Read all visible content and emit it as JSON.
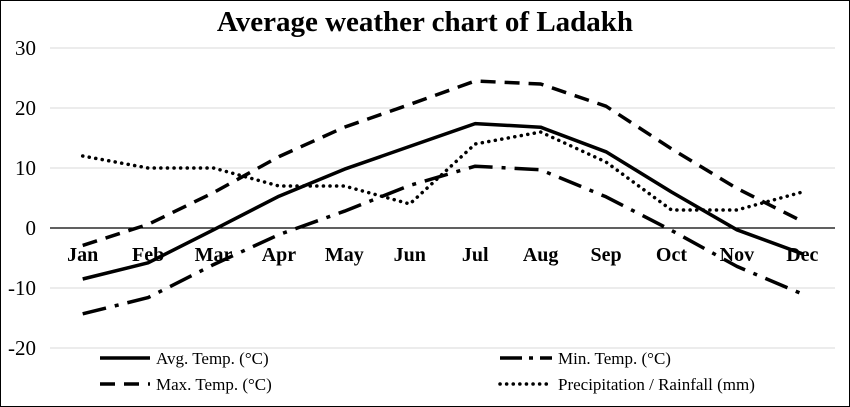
{
  "chart_data": {
    "type": "line",
    "title": "Average weather chart of Ladakh",
    "categories": [
      "Jan",
      "Feb",
      "Mar",
      "Apr",
      "May",
      "Jun",
      "Jul",
      "Aug",
      "Sep",
      "Oct",
      "Nov",
      "Dec"
    ],
    "ylim": [
      -20,
      30
    ],
    "yticks": [
      30,
      20,
      10,
      0,
      -10,
      -20
    ],
    "grid": true,
    "legend_position": "bottom",
    "series": [
      {
        "name": "Avg. Temp. (°C)",
        "style": "solid",
        "color": "#000000",
        "values": [
          -8.5,
          -5.8,
          -0.3,
          5.3,
          9.8,
          13.6,
          17.4,
          16.8,
          12.7,
          6.0,
          -0.3,
          -4.3
        ]
      },
      {
        "name": "Min. Temp. (°C)",
        "style": "dashdot",
        "color": "#000000",
        "values": [
          -14.3,
          -11.6,
          -6.1,
          -1.1,
          2.8,
          7.1,
          10.3,
          9.7,
          5.2,
          -0.4,
          -6.4,
          -11.0
        ]
      },
      {
        "name": "Max. Temp. (°C)",
        "style": "dashed",
        "color": "#000000",
        "values": [
          -2.9,
          0.6,
          5.9,
          11.9,
          16.8,
          20.6,
          24.5,
          24.0,
          20.3,
          13.2,
          6.6,
          1.1
        ]
      },
      {
        "name": "Precipitation / Rainfall (mm)",
        "style": "dotted",
        "color": "#000000",
        "values": [
          12.0,
          10.0,
          10.0,
          7.0,
          7.0,
          4.0,
          14.0,
          16.0,
          11.0,
          3.0,
          3.0,
          6.0
        ]
      }
    ]
  }
}
